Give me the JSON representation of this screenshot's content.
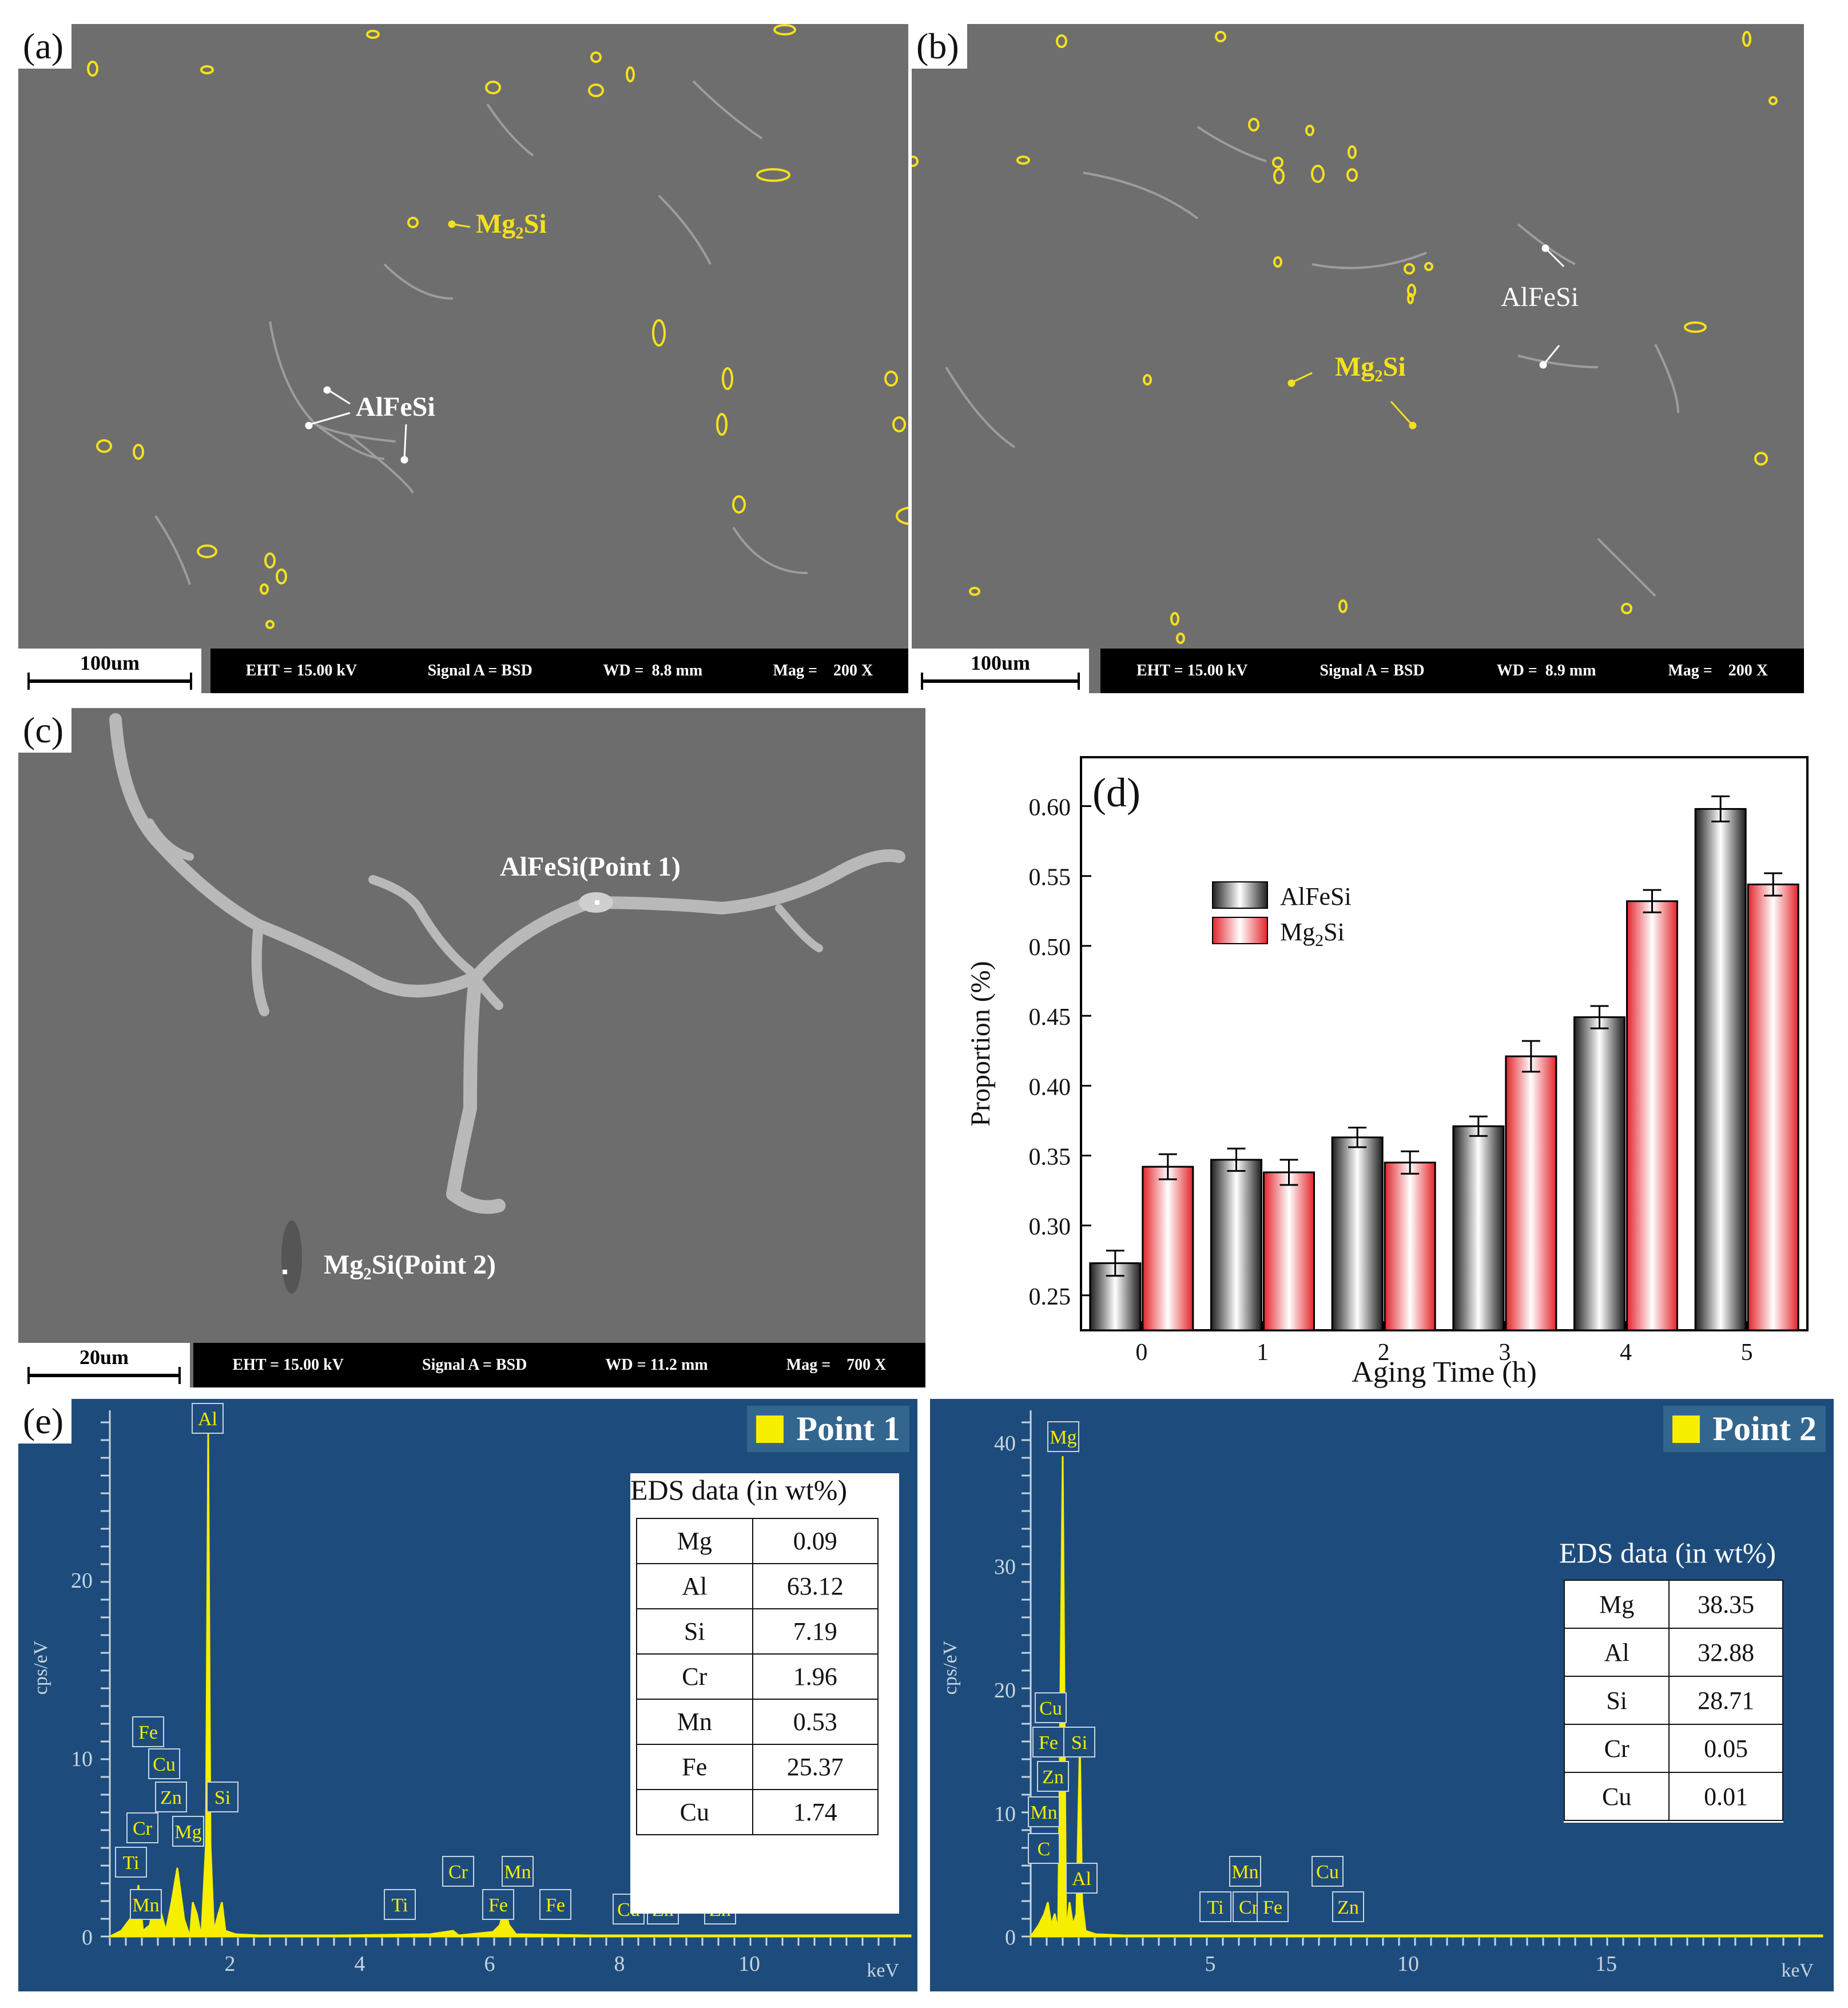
{
  "panel_a": {
    "tag": "(a)",
    "labels": {
      "mg2si": "Mg₂Si",
      "alfesi": "AlFeSi"
    },
    "scale_label": "100um",
    "info": {
      "eht": "EHT = 15.00 kV",
      "signal": "Signal A = BSD",
      "wd": "WD =  8.8 mm",
      "mag": "Mag =    200 X"
    }
  },
  "panel_b": {
    "tag": "(b)",
    "labels": {
      "mg2si": "Mg₂Si",
      "alfesi": "AlFeSi"
    },
    "scale_label": "100um",
    "info": {
      "eht": "EHT = 15.00 kV",
      "signal": "Signal A = BSD",
      "wd": "WD =  8.9 mm",
      "mag": "Mag =    200 X"
    }
  },
  "panel_c": {
    "tag": "(c)",
    "labels": {
      "point1": "AlFeSi(Point 1)",
      "point2": "Mg₂Si(Point 2)"
    },
    "scale_label": "20um",
    "info": {
      "eht": "EHT = 15.00 kV",
      "signal": "Signal A = BSD",
      "wd": "WD = 11.2 mm",
      "mag": "Mag =    700 X"
    }
  },
  "panel_e": {
    "tag": "(e)",
    "point1": {
      "label": "Point 1",
      "yaxis_label": "cps/eV",
      "xaxis_unit": "keV",
      "x_ticks": [
        "2",
        "4",
        "6",
        "8",
        "10"
      ],
      "y_ticks": [
        "0",
        "10",
        "20"
      ],
      "peak_labels": [
        "Al",
        "Fe",
        "Cu",
        "Zn",
        "Si",
        "Cr",
        "Mg",
        "Ti",
        "Mn",
        "Ti",
        "Cr",
        "Fe",
        "Mn",
        "Fe",
        "Cu",
        "Zn",
        "Zn"
      ],
      "table_title": "EDS  data (in wt%)",
      "rows": [
        [
          "Mg",
          "0.09"
        ],
        [
          "Al",
          "63.12"
        ],
        [
          "Si",
          "7.19"
        ],
        [
          "Cr",
          "1.96"
        ],
        [
          "Mn",
          "0.53"
        ],
        [
          "Fe",
          "25.37"
        ],
        [
          "Cu",
          "1.74"
        ]
      ]
    },
    "point2": {
      "label": "Point 2",
      "yaxis_label": "cps/eV",
      "xaxis_unit": "keV",
      "x_ticks": [
        "5",
        "10",
        "15"
      ],
      "y_ticks": [
        "0",
        "10",
        "20",
        "30",
        "40"
      ],
      "peak_labels": [
        "Mg",
        "Cu",
        "Fe",
        "Si",
        "Zn",
        "Mn",
        "C",
        "Al",
        "Ti",
        "Cr",
        "Fe",
        "Mn",
        "Cu",
        "Zn"
      ],
      "table_title": "EDS  data (in wt%)",
      "rows": [
        [
          "Mg",
          "38.35"
        ],
        [
          "Al",
          "32.88"
        ],
        [
          "Si",
          "28.71"
        ],
        [
          "Cr",
          "0.05"
        ],
        [
          "Cu",
          "0.01"
        ]
      ]
    }
  },
  "colors": {
    "alfesi_bar": "#2a2a2a",
    "mg2si_bar": "#e8333b",
    "eds_bg": "#1d4c7c",
    "spectrum": "#f7ee00",
    "marker": "#f5e11b"
  },
  "chart_data": {
    "type": "bar",
    "panel_tag": "(d)",
    "categories": [
      "0",
      "1",
      "2",
      "3",
      "4",
      "5"
    ],
    "xlabel": "Aging Time (h)",
    "ylabel": "Proportion (%)",
    "ylim": [
      0.225,
      0.635
    ],
    "yticks": [
      "0.25",
      "0.30",
      "0.35",
      "0.40",
      "0.45",
      "0.50",
      "0.55",
      "0.60"
    ],
    "legend_position": "upper-left",
    "series": [
      {
        "name": "AlFeSi",
        "values": [
          0.273,
          0.347,
          0.363,
          0.371,
          0.449,
          0.598
        ],
        "errors": [
          0.009,
          0.008,
          0.007,
          0.007,
          0.008,
          0.009
        ]
      },
      {
        "name": "Mg2Si",
        "values": [
          0.342,
          0.338,
          0.345,
          0.421,
          0.532,
          0.544
        ],
        "errors": [
          0.009,
          0.009,
          0.008,
          0.011,
          0.008,
          0.008
        ]
      }
    ]
  }
}
